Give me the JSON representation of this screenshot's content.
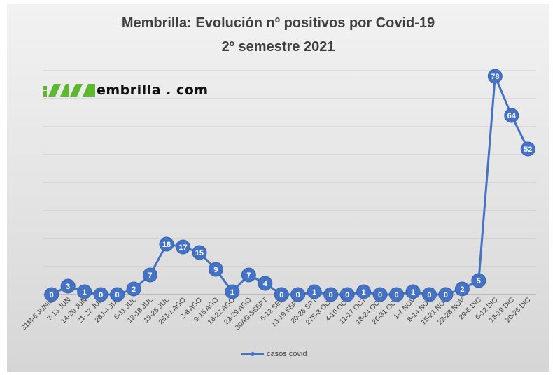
{
  "chart_data": {
    "type": "line",
    "title": "Membrilla: Evolución nº positivos por Covid-19",
    "subtitle": "2º semestre 2021",
    "categories": [
      "31M-6 JUNIO",
      "7-13 JUN",
      "14-20 JUN",
      "21-27 JUN",
      "28J-4 JUL",
      "5-11 JUL",
      "12-18 JUL",
      "19-25 JUL",
      "26J-1 AGO",
      "2-8 AGO",
      "9-15 AGO",
      "16-22 AGO",
      "23-29 AGO",
      "30AG-5SEPT",
      "6-12 SEP",
      "13-19 SEPT",
      "20-26 SPT",
      "27S-3 OCT",
      "4-10 OCT",
      "11-17 OCT",
      "18-24 OCT",
      "25-31 OCT",
      "1-7 NOV",
      "8-14 NOV",
      "15-21 NOV",
      "22-28 NOV",
      "29-5 DIC",
      "6-12 DIC",
      "13-19 DIC",
      "20-26 DIC"
    ],
    "series": [
      {
        "name": "casos covid",
        "color": "#4472c4",
        "values": [
          0,
          3,
          1,
          0,
          0,
          2,
          7,
          18,
          17,
          15,
          9,
          1,
          7,
          4,
          0,
          0,
          1,
          0,
          0,
          1,
          0,
          0,
          1,
          0,
          0,
          2,
          5,
          78,
          64,
          52
        ]
      }
    ],
    "ylim": [
      0,
      80
    ],
    "grid": true,
    "y_tick_labels_visible": false,
    "legend_position": "bottom",
    "data_labels": true
  },
  "logo": {
    "text": "embrilla . com",
    "mark_color": "#5cb82e"
  }
}
